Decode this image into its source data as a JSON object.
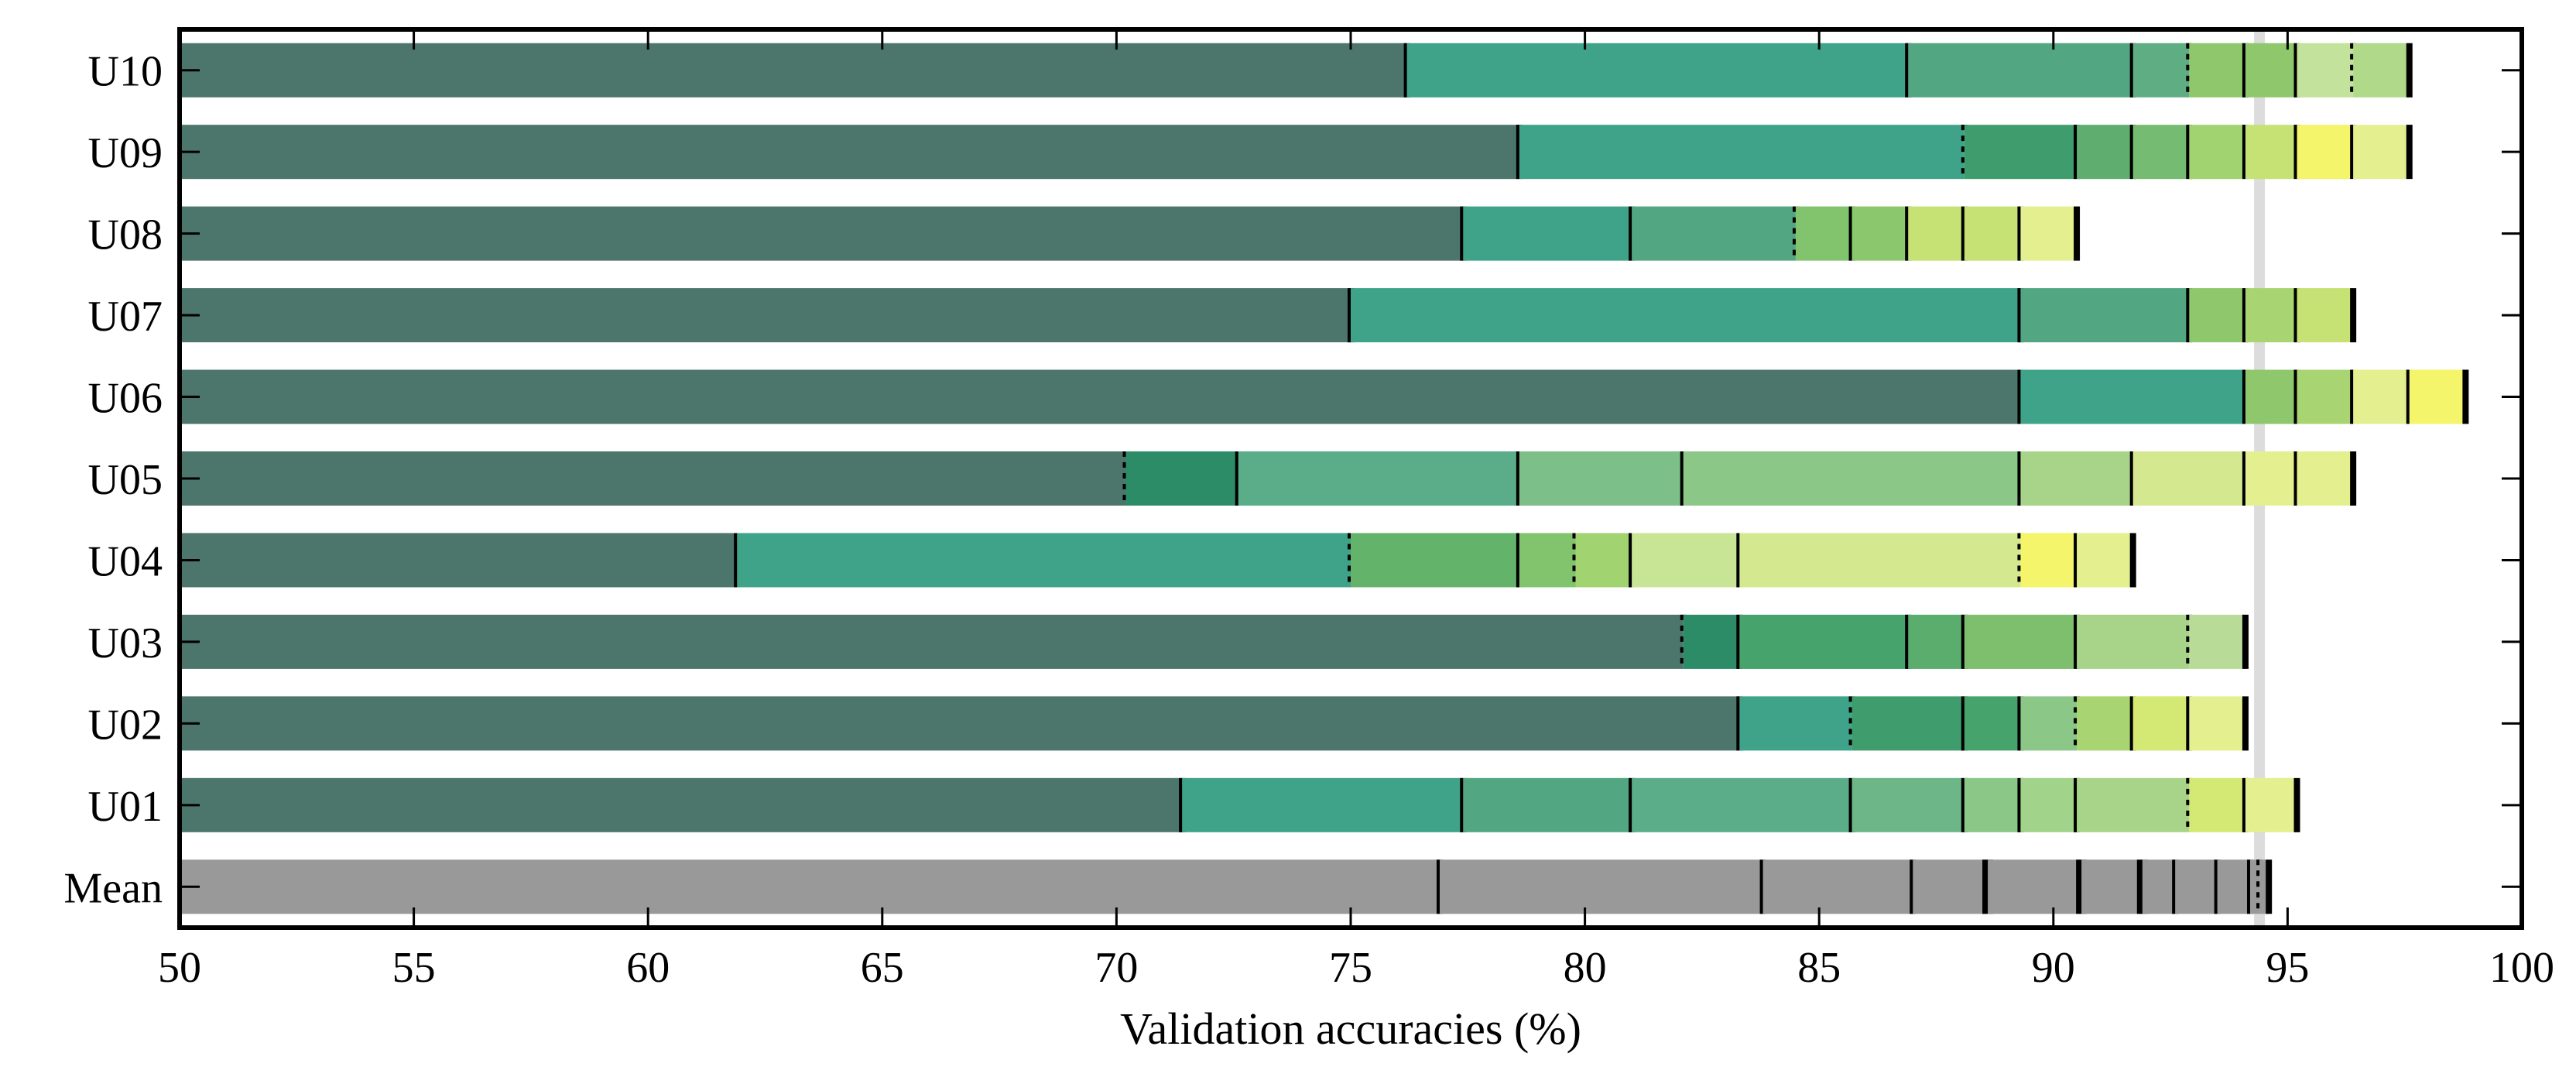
{
  "chart_data": {
    "type": "bar",
    "orientation": "horizontal",
    "title": "",
    "xlabel": "Validation accuracies (%)",
    "ylabel": "",
    "xlim": [
      50,
      100
    ],
    "xticks": [
      50,
      55,
      60,
      65,
      70,
      75,
      80,
      85,
      90,
      95,
      100
    ],
    "reference_line": 94.4,
    "categories": [
      "U10",
      "U09",
      "U08",
      "U07",
      "U06",
      "U05",
      "U04",
      "U03",
      "U02",
      "U01",
      "Mean"
    ],
    "rows": [
      {
        "label": "U10",
        "segments": [
          {
            "end": 76.2,
            "color": "#4c766c",
            "sep": "solid"
          },
          {
            "end": 86.9,
            "color": "#3ea388",
            "sep": "solid"
          },
          {
            "end": 91.7,
            "color": "#52a782",
            "sep": "solid"
          },
          {
            "end": 92.9,
            "color": "#5fad82",
            "sep": "dotted"
          },
          {
            "end": 94.1,
            "color": "#8fc76c",
            "sep": "solid"
          },
          {
            "end": 95.2,
            "color": "#8fc76c",
            "sep": "solid"
          },
          {
            "end": 96.4,
            "color": "#c3e29b",
            "sep": "dotted"
          },
          {
            "end": 97.6,
            "color": "#b0d98a",
            "sep": "solid"
          }
        ]
      },
      {
        "label": "U09",
        "segments": [
          {
            "end": 78.6,
            "color": "#4c766c",
            "sep": "solid"
          },
          {
            "end": 88.1,
            "color": "#3ea388",
            "sep": "dotted"
          },
          {
            "end": 90.5,
            "color": "#3f9c6c",
            "sep": "solid"
          },
          {
            "end": 91.7,
            "color": "#5fad6f",
            "sep": "solid"
          },
          {
            "end": 92.9,
            "color": "#75bb71",
            "sep": "solid"
          },
          {
            "end": 94.1,
            "color": "#a2d371",
            "sep": "solid"
          },
          {
            "end": 95.2,
            "color": "#c6e274",
            "sep": "solid"
          },
          {
            "end": 96.4,
            "color": "#f4f56a",
            "sep": "solid"
          },
          {
            "end": 97.6,
            "color": "#e4ef8f",
            "sep": "solid"
          }
        ]
      },
      {
        "label": "U08",
        "segments": [
          {
            "end": 77.4,
            "color": "#4c766c",
            "sep": "solid"
          },
          {
            "end": 81.0,
            "color": "#3ea388",
            "sep": "solid"
          },
          {
            "end": 84.5,
            "color": "#52a782",
            "sep": "dotted"
          },
          {
            "end": 85.7,
            "color": "#82c46e",
            "sep": "solid"
          },
          {
            "end": 86.9,
            "color": "#8bc76c",
            "sep": "solid"
          },
          {
            "end": 88.1,
            "color": "#c6e274",
            "sep": "solid"
          },
          {
            "end": 89.3,
            "color": "#c6e274",
            "sep": "solid"
          },
          {
            "end": 90.5,
            "color": "#e4ef8f",
            "sep": "solid"
          }
        ]
      },
      {
        "label": "U07",
        "segments": [
          {
            "end": 75.0,
            "color": "#4c766c",
            "sep": "solid"
          },
          {
            "end": 89.3,
            "color": "#3ea388",
            "sep": "solid"
          },
          {
            "end": 92.9,
            "color": "#52a782",
            "sep": "solid"
          },
          {
            "end": 94.1,
            "color": "#8fc76c",
            "sep": "solid"
          },
          {
            "end": 95.2,
            "color": "#a8d471",
            "sep": "solid"
          },
          {
            "end": 96.4,
            "color": "#c6e274",
            "sep": "solid"
          }
        ]
      },
      {
        "label": "U06",
        "segments": [
          {
            "end": 89.3,
            "color": "#4c766c",
            "sep": "solid"
          },
          {
            "end": 94.1,
            "color": "#3ea388",
            "sep": "solid"
          },
          {
            "end": 95.2,
            "color": "#8fc76c",
            "sep": "solid"
          },
          {
            "end": 96.4,
            "color": "#a8d471",
            "sep": "solid"
          },
          {
            "end": 97.6,
            "color": "#e4ef8f",
            "sep": "solid"
          },
          {
            "end": 98.8,
            "color": "#f4f56a",
            "sep": "solid"
          }
        ]
      },
      {
        "label": "U05",
        "segments": [
          {
            "end": 70.2,
            "color": "#4c766c",
            "sep": "dotted"
          },
          {
            "end": 72.6,
            "color": "#2c8c68",
            "sep": "solid"
          },
          {
            "end": 78.6,
            "color": "#5aad88",
            "sep": "solid"
          },
          {
            "end": 82.1,
            "color": "#7dbf88",
            "sep": "solid"
          },
          {
            "end": 89.3,
            "color": "#8bc787",
            "sep": "solid"
          },
          {
            "end": 91.7,
            "color": "#a8d48a",
            "sep": "solid"
          },
          {
            "end": 94.1,
            "color": "#d4e88f",
            "sep": "solid"
          },
          {
            "end": 95.2,
            "color": "#e4ef8f",
            "sep": "solid"
          },
          {
            "end": 96.4,
            "color": "#e4ef8f",
            "sep": "solid"
          }
        ]
      },
      {
        "label": "U04",
        "segments": [
          {
            "end": 61.9,
            "color": "#4c766c",
            "sep": "solid"
          },
          {
            "end": 75.0,
            "color": "#3ea388",
            "sep": "dotted"
          },
          {
            "end": 78.6,
            "color": "#64b36b",
            "sep": "solid"
          },
          {
            "end": 79.8,
            "color": "#82c46e",
            "sep": "dotted"
          },
          {
            "end": 81.0,
            "color": "#a2d371",
            "sep": "solid"
          },
          {
            "end": 83.3,
            "color": "#c8e596",
            "sep": "solid"
          },
          {
            "end": 89.3,
            "color": "#d4e88f",
            "sep": "dotted"
          },
          {
            "end": 90.5,
            "color": "#f4f56a",
            "sep": "solid"
          },
          {
            "end": 91.7,
            "color": "#e4ef8f",
            "sep": "solid"
          }
        ]
      },
      {
        "label": "U03",
        "segments": [
          {
            "end": 82.1,
            "color": "#4c766c",
            "sep": "dotted"
          },
          {
            "end": 83.3,
            "color": "#2c8c68",
            "sep": "solid"
          },
          {
            "end": 86.9,
            "color": "#46a36c",
            "sep": "solid"
          },
          {
            "end": 88.1,
            "color": "#5aad6c",
            "sep": "solid"
          },
          {
            "end": 90.5,
            "color": "#7dbf6c",
            "sep": "solid"
          },
          {
            "end": 92.9,
            "color": "#a8d48a",
            "sep": "dotted"
          },
          {
            "end": 94.1,
            "color": "#b8dc98",
            "sep": "solid"
          }
        ]
      },
      {
        "label": "U02",
        "segments": [
          {
            "end": 83.3,
            "color": "#4c766c",
            "sep": "solid"
          },
          {
            "end": 85.7,
            "color": "#3ea388",
            "sep": "dotted"
          },
          {
            "end": 88.1,
            "color": "#3f9c6c",
            "sep": "solid"
          },
          {
            "end": 89.3,
            "color": "#46a36c",
            "sep": "solid"
          },
          {
            "end": 90.5,
            "color": "#8bc787",
            "sep": "dotted"
          },
          {
            "end": 91.7,
            "color": "#a8d471",
            "sep": "solid"
          },
          {
            "end": 92.9,
            "color": "#d4e874",
            "sep": "solid"
          },
          {
            "end": 94.1,
            "color": "#e4ef8f",
            "sep": "solid"
          }
        ]
      },
      {
        "label": "U01",
        "segments": [
          {
            "end": 71.4,
            "color": "#4c766c",
            "sep": "solid"
          },
          {
            "end": 77.4,
            "color": "#3ea388",
            "sep": "solid"
          },
          {
            "end": 81.0,
            "color": "#52a782",
            "sep": "solid"
          },
          {
            "end": 85.7,
            "color": "#5aad88",
            "sep": "solid"
          },
          {
            "end": 88.1,
            "color": "#6cb688",
            "sep": "solid"
          },
          {
            "end": 89.3,
            "color": "#8bc787",
            "sep": "solid"
          },
          {
            "end": 90.5,
            "color": "#a2d38a",
            "sep": "solid"
          },
          {
            "end": 92.9,
            "color": "#a8d48a",
            "sep": "dotted"
          },
          {
            "end": 94.1,
            "color": "#d4e874",
            "sep": "solid"
          },
          {
            "end": 95.2,
            "color": "#e4ef8f",
            "sep": "solid"
          }
        ]
      },
      {
        "label": "Mean",
        "segments": [
          {
            "end": 76.9,
            "color": "#999999",
            "sep": "solid"
          },
          {
            "end": 83.8,
            "color": "#999999",
            "sep": "solid"
          },
          {
            "end": 87.0,
            "color": "#999999",
            "sep": "solid"
          },
          {
            "end": 88.6,
            "color": "#999999",
            "sep": "thick"
          },
          {
            "end": 90.6,
            "color": "#999999",
            "sep": "thick"
          },
          {
            "end": 91.9,
            "color": "#999999",
            "sep": "thick"
          },
          {
            "end": 92.6,
            "color": "#999999",
            "sep": "solid"
          },
          {
            "end": 93.5,
            "color": "#999999",
            "sep": "solid"
          },
          {
            "end": 94.2,
            "color": "#999999",
            "sep": "solid"
          },
          {
            "end": 94.4,
            "color": "#999999",
            "sep": "dotted"
          },
          {
            "end": 94.6,
            "color": "#999999",
            "sep": "solid"
          }
        ]
      }
    ]
  }
}
